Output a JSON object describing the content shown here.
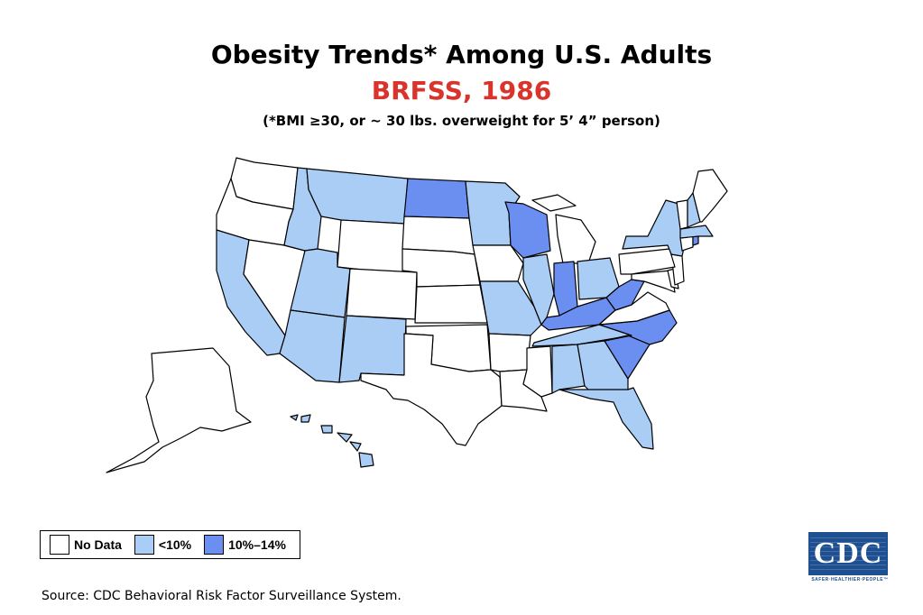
{
  "title": "Obesity Trends* Among U.S. Adults",
  "subtitle": "BRFSS, 1986",
  "note": "(*BMI ≥30, or ~ 30 lbs. overweight for 5’ 4” person)",
  "colors": {
    "subtitle": "#d9342b",
    "no_data": "#ffffff",
    "lt10": "#a9cdf5",
    "p10_14": "#6a8ff0",
    "border": "#000000"
  },
  "legend": [
    {
      "key": "no_data",
      "label": "No Data"
    },
    {
      "key": "lt10",
      "label": "<10%"
    },
    {
      "key": "p10_14",
      "label": "10%–14%"
    }
  ],
  "states": {
    "WA": "no_data",
    "OR": "no_data",
    "CA": "lt10",
    "NV": "no_data",
    "ID": "lt10",
    "MT": "lt10",
    "WY": "no_data",
    "UT": "lt10",
    "AZ": "lt10",
    "CO": "no_data",
    "NM": "lt10",
    "ND": "p10_14",
    "SD": "no_data",
    "NE": "no_data",
    "KS": "no_data",
    "OK": "no_data",
    "TX": "no_data",
    "MN": "lt10",
    "IA": "no_data",
    "MO": "lt10",
    "AR": "no_data",
    "LA": "no_data",
    "WI": "p10_14",
    "IL": "lt10",
    "MI": "no_data",
    "IN": "p10_14",
    "OH": "lt10",
    "KY": "p10_14",
    "TN": "lt10",
    "MS": "no_data",
    "AL": "lt10",
    "GA": "lt10",
    "FL": "lt10",
    "SC": "p10_14",
    "NC": "p10_14",
    "VA": "no_data",
    "WV": "p10_14",
    "MD": "no_data",
    "DE": "no_data",
    "NJ": "no_data",
    "PA": "no_data",
    "NY": "lt10",
    "CT": "no_data",
    "RI": "p10_14",
    "MA": "lt10",
    "VT": "no_data",
    "NH": "lt10",
    "ME": "no_data",
    "AK": "no_data",
    "HI": "lt10"
  },
  "source": "Source: CDC Behavioral Risk Factor Surveillance System.",
  "logo": {
    "text": "CDC",
    "tagline": "SAFER·HEALTHIER·PEOPLE™"
  }
}
